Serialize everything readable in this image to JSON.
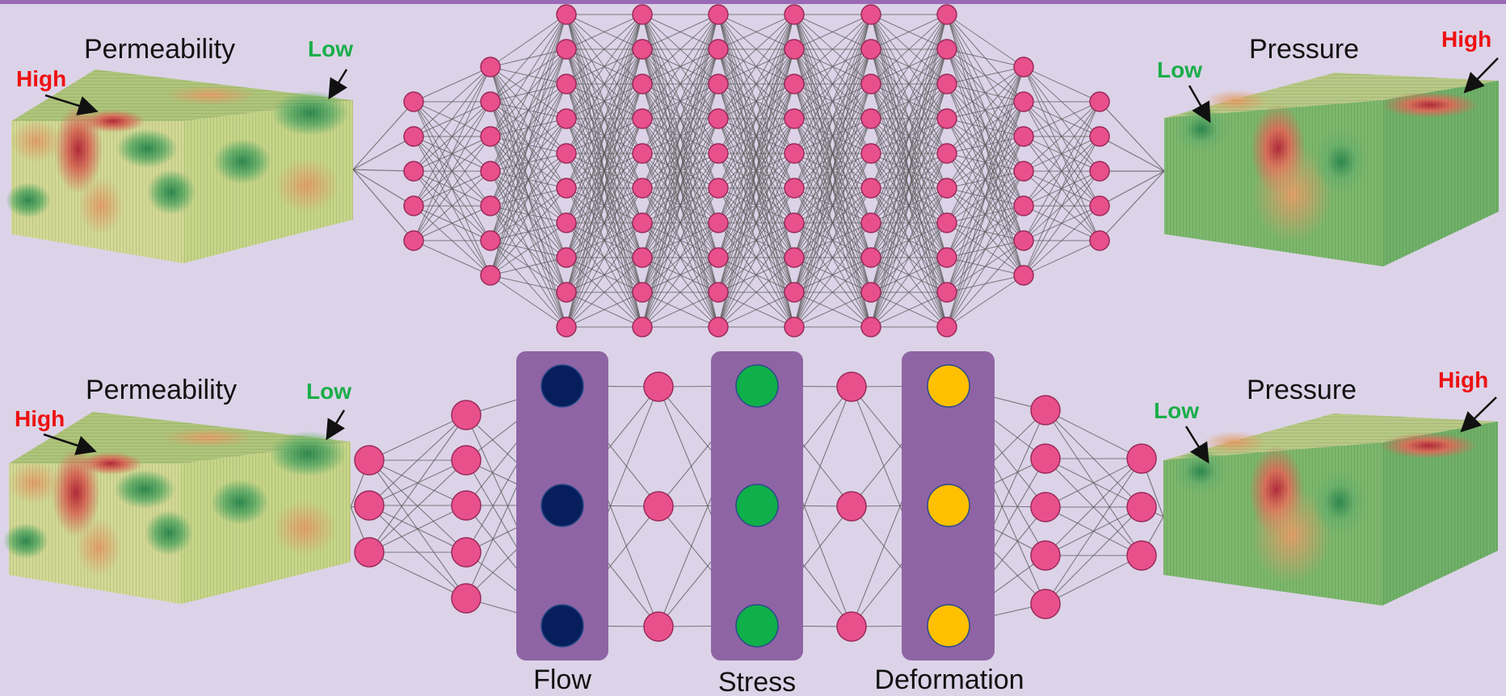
{
  "top_row": {
    "input_title": "Permeability",
    "input_low": "Low",
    "input_high": "High",
    "output_title": "Pressure",
    "output_low": "Low",
    "output_high": "High"
  },
  "bottom_row": {
    "input_title": "Permeability",
    "input_low": "Low",
    "input_high": "High",
    "output_title": "Pressure",
    "output_low": "Low",
    "output_high": "High",
    "modules": [
      {
        "label": "Flow",
        "node_color": "#061f5c"
      },
      {
        "label": "Stress",
        "node_color": "#0fb04a"
      },
      {
        "label": "Deformation",
        "node_color": "#ffc000"
      }
    ]
  },
  "colors": {
    "background": "#dcd3e8",
    "node": "#e8508c",
    "high_label": "#ee1111",
    "low_label": "#1aae4a",
    "module_panel": "#8f64a4",
    "edge": "#5a5a5a"
  }
}
